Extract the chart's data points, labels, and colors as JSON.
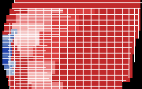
{
  "figsize": [
    1.8,
    1.14
  ],
  "dpi": 100,
  "background": "#000000",
  "colors": {
    "strong_red": "#C0292A",
    "medium_red": "#D94040",
    "light_red": "#E88080",
    "very_light_red": "#F2B0AE",
    "pale_pink": "#F5CECE",
    "light_blue": "#95AACC",
    "medium_blue": "#5577BB",
    "strong_blue": "#2244AA",
    "white": "#FFFFFF",
    "black": "#000000"
  }
}
